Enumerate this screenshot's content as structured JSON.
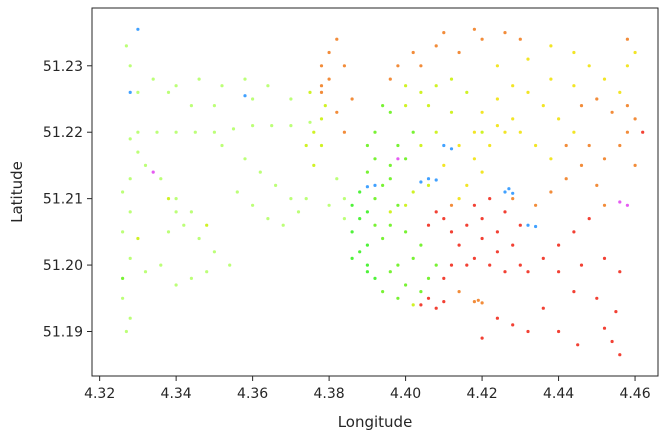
{
  "chart_data": {
    "type": "scatter",
    "title": "",
    "xlabel": "Longitude",
    "ylabel": "Latitude",
    "xlim": [
      4.318,
      4.466
    ],
    "ylim": [
      51.1833,
      51.2387
    ],
    "xticks": [
      4.32,
      4.34,
      4.36,
      4.38,
      4.4,
      4.42,
      4.44,
      4.46
    ],
    "xtick_labels": [
      "4.32",
      "4.34",
      "4.36",
      "4.38",
      "4.40",
      "4.42",
      "4.44",
      "4.46"
    ],
    "yticks": [
      51.19,
      51.2,
      51.21,
      51.22,
      51.23
    ],
    "ytick_labels": [
      "51.19",
      "51.20",
      "51.21",
      "51.22",
      "51.23"
    ],
    "grid": false,
    "legend": "none",
    "colors": {
      "red": "#f02010",
      "orange": "#f07818",
      "yellow": "#f0e000",
      "lime": "#c8f000",
      "green": "#60f010",
      "bright_green": "#30f018",
      "light_green": "#b0ff60",
      "blue": "#2090ff",
      "magenta": "#e040f0"
    },
    "points": [
      [
        4.41,
        51.215,
        "yellow"
      ],
      [
        4.414,
        51.218,
        "yellow"
      ],
      [
        4.418,
        51.22,
        "yellow"
      ],
      [
        4.412,
        51.223,
        "lime"
      ],
      [
        4.406,
        51.224,
        "lime"
      ],
      [
        4.402,
        51.22,
        "green"
      ],
      [
        4.398,
        51.218,
        "green"
      ],
      [
        4.396,
        51.215,
        "green"
      ],
      [
        4.394,
        51.212,
        "green"
      ],
      [
        4.392,
        51.21,
        "green"
      ],
      [
        4.39,
        51.208,
        "bright_green"
      ],
      [
        4.388,
        51.207,
        "bright_green"
      ],
      [
        4.386,
        51.205,
        "bright_green"
      ],
      [
        4.388,
        51.202,
        "bright_green"
      ],
      [
        4.39,
        51.2,
        "bright_green"
      ],
      [
        4.392,
        51.198,
        "bright_green"
      ],
      [
        4.394,
        51.196,
        "green"
      ],
      [
        4.398,
        51.195,
        "green"
      ],
      [
        4.402,
        51.194,
        "lime"
      ],
      [
        4.404,
        51.196,
        "green"
      ],
      [
        4.406,
        51.198,
        "green"
      ],
      [
        4.408,
        51.2,
        "green"
      ],
      [
        4.404,
        51.203,
        "green"
      ],
      [
        4.4,
        51.205,
        "green"
      ],
      [
        4.396,
        51.206,
        "green"
      ],
      [
        4.398,
        51.209,
        "green"
      ],
      [
        4.402,
        51.211,
        "lime"
      ],
      [
        4.406,
        51.212,
        "lime"
      ],
      [
        4.416,
        51.212,
        "yellow"
      ],
      [
        4.42,
        51.214,
        "yellow"
      ],
      [
        4.414,
        51.203,
        "red"
      ],
      [
        4.418,
        51.201,
        "red"
      ],
      [
        4.422,
        51.2,
        "red"
      ],
      [
        4.426,
        51.199,
        "red"
      ],
      [
        4.43,
        51.2,
        "red"
      ],
      [
        4.428,
        51.203,
        "red"
      ],
      [
        4.424,
        51.205,
        "red"
      ],
      [
        4.42,
        51.207,
        "red"
      ],
      [
        4.416,
        51.206,
        "red"
      ],
      [
        4.412,
        51.205,
        "red"
      ],
      [
        4.42,
        51.204,
        "red"
      ],
      [
        4.424,
        51.202,
        "red"
      ],
      [
        4.416,
        51.2,
        "red"
      ],
      [
        4.412,
        51.2,
        "red"
      ],
      [
        4.41,
        51.198,
        "red"
      ],
      [
        4.404,
        51.194,
        "red"
      ],
      [
        4.408,
        51.1935,
        "red"
      ],
      [
        4.41,
        51.1945,
        "red"
      ],
      [
        4.414,
        51.196,
        "orange"
      ],
      [
        4.406,
        51.195,
        "red"
      ],
      [
        4.426,
        51.208,
        "red"
      ],
      [
        4.428,
        51.21,
        "orange"
      ],
      [
        4.422,
        51.21,
        "red"
      ],
      [
        4.418,
        51.209,
        "red"
      ],
      [
        4.43,
        51.206,
        "red"
      ],
      [
        4.434,
        51.209,
        "orange"
      ],
      [
        4.438,
        51.211,
        "orange"
      ],
      [
        4.442,
        51.213,
        "orange"
      ],
      [
        4.446,
        51.215,
        "orange"
      ],
      [
        4.45,
        51.212,
        "orange"
      ],
      [
        4.452,
        51.209,
        "orange"
      ],
      [
        4.448,
        51.207,
        "red"
      ],
      [
        4.444,
        51.205,
        "red"
      ],
      [
        4.44,
        51.203,
        "red"
      ],
      [
        4.436,
        51.201,
        "red"
      ],
      [
        4.432,
        51.199,
        "red"
      ],
      [
        4.44,
        51.199,
        "red"
      ],
      [
        4.446,
        51.2,
        "red"
      ],
      [
        4.452,
        51.201,
        "red"
      ],
      [
        4.456,
        51.199,
        "red"
      ],
      [
        4.45,
        51.195,
        "red"
      ],
      [
        4.455,
        51.193,
        "red"
      ],
      [
        4.452,
        51.1905,
        "red"
      ],
      [
        4.454,
        51.1885,
        "red"
      ],
      [
        4.456,
        51.1865,
        "red"
      ],
      [
        4.424,
        51.192,
        "red"
      ],
      [
        4.428,
        51.191,
        "red"
      ],
      [
        4.432,
        51.19,
        "red"
      ],
      [
        4.436,
        51.1935,
        "red"
      ],
      [
        4.444,
        51.196,
        "red"
      ],
      [
        4.414,
        51.232,
        "orange"
      ],
      [
        4.42,
        51.234,
        "orange"
      ],
      [
        4.426,
        51.235,
        "orange"
      ],
      [
        4.43,
        51.234,
        "orange"
      ],
      [
        4.418,
        51.2355,
        "orange"
      ],
      [
        4.41,
        51.235,
        "orange"
      ],
      [
        4.424,
        51.23,
        "yellow"
      ],
      [
        4.432,
        51.231,
        "yellow"
      ],
      [
        4.438,
        51.233,
        "yellow"
      ],
      [
        4.444,
        51.232,
        "yellow"
      ],
      [
        4.448,
        51.23,
        "yellow"
      ],
      [
        4.452,
        51.228,
        "yellow"
      ],
      [
        4.456,
        51.226,
        "yellow"
      ],
      [
        4.458,
        51.224,
        "orange"
      ],
      [
        4.46,
        51.222,
        "orange"
      ],
      [
        4.458,
        51.22,
        "orange"
      ],
      [
        4.456,
        51.218,
        "orange"
      ],
      [
        4.452,
        51.216,
        "orange"
      ],
      [
        4.448,
        51.218,
        "orange"
      ],
      [
        4.444,
        51.22,
        "yellow"
      ],
      [
        4.44,
        51.222,
        "yellow"
      ],
      [
        4.436,
        51.224,
        "yellow"
      ],
      [
        4.432,
        51.226,
        "yellow"
      ],
      [
        4.428,
        51.227,
        "yellow"
      ],
      [
        4.424,
        51.225,
        "yellow"
      ],
      [
        4.42,
        51.223,
        "yellow"
      ],
      [
        4.43,
        51.22,
        "yellow"
      ],
      [
        4.434,
        51.218,
        "yellow"
      ],
      [
        4.438,
        51.216,
        "yellow"
      ],
      [
        4.442,
        51.218,
        "orange"
      ],
      [
        4.446,
        51.224,
        "orange"
      ],
      [
        4.45,
        51.225,
        "orange"
      ],
      [
        4.454,
        51.223,
        "orange"
      ],
      [
        4.444,
        51.227,
        "yellow"
      ],
      [
        4.438,
        51.228,
        "yellow"
      ],
      [
        4.458,
        51.23,
        "yellow"
      ],
      [
        4.46,
        51.232,
        "yellow"
      ],
      [
        4.458,
        51.234,
        "orange"
      ],
      [
        4.462,
        51.22,
        "red"
      ],
      [
        4.46,
        51.215,
        "orange"
      ],
      [
        4.412,
        51.228,
        "lime"
      ],
      [
        4.416,
        51.226,
        "lime"
      ],
      [
        4.408,
        51.227,
        "lime"
      ],
      [
        4.404,
        51.226,
        "lime"
      ],
      [
        4.4,
        51.224,
        "lime"
      ],
      [
        4.404,
        51.23,
        "orange"
      ],
      [
        4.402,
        51.232,
        "orange"
      ],
      [
        4.398,
        51.23,
        "orange"
      ],
      [
        4.396,
        51.228,
        "orange"
      ],
      [
        4.408,
        51.233,
        "orange"
      ],
      [
        4.392,
        51.22,
        "green"
      ],
      [
        4.39,
        51.218,
        "green"
      ],
      [
        4.394,
        51.224,
        "green"
      ],
      [
        4.396,
        51.223,
        "green"
      ],
      [
        4.4,
        51.227,
        "lime"
      ],
      [
        4.386,
        51.225,
        "orange"
      ],
      [
        4.384,
        51.22,
        "orange"
      ],
      [
        4.382,
        51.223,
        "orange"
      ],
      [
        4.38,
        51.228,
        "orange"
      ],
      [
        4.378,
        51.226,
        "orange"
      ],
      [
        4.378,
        51.222,
        "lime"
      ],
      [
        4.379,
        51.224,
        "lime"
      ],
      [
        4.378,
        51.227,
        "orange"
      ],
      [
        4.378,
        51.23,
        "orange"
      ],
      [
        4.38,
        51.232,
        "orange"
      ],
      [
        4.384,
        51.23,
        "orange"
      ],
      [
        4.382,
        51.234,
        "orange"
      ],
      [
        4.375,
        51.226,
        "lime"
      ],
      [
        4.376,
        51.22,
        "lime"
      ],
      [
        4.374,
        51.218,
        "lime"
      ],
      [
        4.33,
        51.22,
        "light_green"
      ],
      [
        4.335,
        51.22,
        "light_green"
      ],
      [
        4.34,
        51.22,
        "light_green"
      ],
      [
        4.345,
        51.22,
        "light_green"
      ],
      [
        4.35,
        51.22,
        "light_green"
      ],
      [
        4.355,
        51.2205,
        "light_green"
      ],
      [
        4.36,
        51.221,
        "light_green"
      ],
      [
        4.365,
        51.221,
        "light_green"
      ],
      [
        4.37,
        51.221,
        "light_green"
      ],
      [
        4.375,
        51.2215,
        "light_green"
      ],
      [
        4.328,
        51.219,
        "light_green"
      ],
      [
        4.33,
        51.217,
        "light_green"
      ],
      [
        4.332,
        51.215,
        "light_green"
      ],
      [
        4.336,
        51.213,
        "light_green"
      ],
      [
        4.34,
        51.21,
        "light_green"
      ],
      [
        4.344,
        51.208,
        "light_green"
      ],
      [
        4.34,
        51.208,
        "light_green"
      ],
      [
        4.342,
        51.206,
        "light_green"
      ],
      [
        4.338,
        51.205,
        "light_green"
      ],
      [
        4.346,
        51.204,
        "light_green"
      ],
      [
        4.35,
        51.202,
        "light_green"
      ],
      [
        4.354,
        51.2,
        "light_green"
      ],
      [
        4.348,
        51.199,
        "light_green"
      ],
      [
        4.344,
        51.198,
        "light_green"
      ],
      [
        4.34,
        51.197,
        "light_green"
      ],
      [
        4.336,
        51.2,
        "light_green"
      ],
      [
        4.332,
        51.199,
        "light_green"
      ],
      [
        4.328,
        51.201,
        "light_green"
      ],
      [
        4.326,
        51.205,
        "light_green"
      ],
      [
        4.328,
        51.208,
        "light_green"
      ],
      [
        4.326,
        51.211,
        "light_green"
      ],
      [
        4.328,
        51.213,
        "light_green"
      ],
      [
        4.33,
        51.226,
        "light_green"
      ],
      [
        4.328,
        51.23,
        "light_green"
      ],
      [
        4.327,
        51.233,
        "light_green"
      ],
      [
        4.326,
        51.195,
        "light_green"
      ],
      [
        4.328,
        51.192,
        "light_green"
      ],
      [
        4.327,
        51.19,
        "light_green"
      ],
      [
        4.326,
        51.198,
        "green"
      ],
      [
        4.33,
        51.204,
        "lime"
      ],
      [
        4.338,
        51.21,
        "lime"
      ],
      [
        4.348,
        51.206,
        "lime"
      ],
      [
        4.352,
        51.218,
        "light_green"
      ],
      [
        4.358,
        51.216,
        "light_green"
      ],
      [
        4.362,
        51.214,
        "light_green"
      ],
      [
        4.366,
        51.212,
        "light_green"
      ],
      [
        4.37,
        51.21,
        "light_green"
      ],
      [
        4.372,
        51.208,
        "light_green"
      ],
      [
        4.368,
        51.206,
        "light_green"
      ],
      [
        4.364,
        51.207,
        "light_green"
      ],
      [
        4.36,
        51.209,
        "light_green"
      ],
      [
        4.356,
        51.211,
        "light_green"
      ],
      [
        4.374,
        51.21,
        "light_green"
      ],
      [
        4.376,
        51.215,
        "lime"
      ],
      [
        4.378,
        51.218,
        "lime"
      ],
      [
        4.382,
        51.213,
        "light_green"
      ],
      [
        4.384,
        51.21,
        "light_green"
      ],
      [
        4.38,
        51.209,
        "light_green"
      ],
      [
        4.384,
        51.207,
        "light_green"
      ],
      [
        4.37,
        51.225,
        "light_green"
      ],
      [
        4.364,
        51.227,
        "light_green"
      ],
      [
        4.358,
        51.228,
        "light_green"
      ],
      [
        4.352,
        51.227,
        "light_green"
      ],
      [
        4.346,
        51.228,
        "light_green"
      ],
      [
        4.34,
        51.227,
        "light_green"
      ],
      [
        4.334,
        51.228,
        "light_green"
      ],
      [
        4.338,
        51.226,
        "light_green"
      ],
      [
        4.36,
        51.225,
        "light_green"
      ],
      [
        4.344,
        51.224,
        "light_green"
      ],
      [
        4.35,
        51.224,
        "light_green"
      ],
      [
        4.404,
        51.2125,
        "blue"
      ],
      [
        4.408,
        51.2128,
        "blue"
      ],
      [
        4.406,
        51.213,
        "blue"
      ],
      [
        4.392,
        51.212,
        "blue"
      ],
      [
        4.39,
        51.2118,
        "blue"
      ],
      [
        4.426,
        51.211,
        "blue"
      ],
      [
        4.428,
        51.2108,
        "blue"
      ],
      [
        4.427,
        51.2115,
        "blue"
      ],
      [
        4.432,
        51.206,
        "blue"
      ],
      [
        4.434,
        51.2058,
        "blue"
      ],
      [
        4.412,
        51.2175,
        "blue"
      ],
      [
        4.41,
        51.218,
        "blue"
      ],
      [
        4.33,
        51.2355,
        "blue"
      ],
      [
        4.328,
        51.226,
        "blue"
      ],
      [
        4.334,
        51.214,
        "magenta"
      ],
      [
        4.358,
        51.2255,
        "blue"
      ],
      [
        4.456,
        51.2095,
        "magenta"
      ],
      [
        4.458,
        51.209,
        "magenta"
      ],
      [
        4.398,
        51.216,
        "magenta"
      ],
      [
        4.418,
        51.1945,
        "orange"
      ],
      [
        4.42,
        51.1943,
        "orange"
      ],
      [
        4.419,
        51.1947,
        "orange"
      ],
      [
        4.44,
        51.19,
        "red"
      ],
      [
        4.445,
        51.188,
        "red"
      ],
      [
        4.42,
        51.189,
        "red"
      ],
      [
        4.398,
        51.2,
        "green"
      ],
      [
        4.396,
        51.199,
        "green"
      ],
      [
        4.4,
        51.197,
        "green"
      ],
      [
        4.402,
        51.201,
        "green"
      ],
      [
        4.394,
        51.204,
        "green"
      ],
      [
        4.392,
        51.206,
        "green"
      ],
      [
        4.396,
        51.208,
        "lime"
      ],
      [
        4.4,
        51.209,
        "lime"
      ],
      [
        4.408,
        51.208,
        "red"
      ],
      [
        4.406,
        51.206,
        "red"
      ],
      [
        4.41,
        51.207,
        "red"
      ],
      [
        4.412,
        51.209,
        "orange"
      ],
      [
        4.414,
        51.21,
        "yellow"
      ],
      [
        4.418,
        51.216,
        "yellow"
      ],
      [
        4.422,
        51.218,
        "yellow"
      ],
      [
        4.426,
        51.22,
        "yellow"
      ],
      [
        4.428,
        51.222,
        "yellow"
      ],
      [
        4.424,
        51.221,
        "yellow"
      ],
      [
        4.42,
        51.22,
        "lime"
      ],
      [
        4.408,
        51.22,
        "lime"
      ],
      [
        4.404,
        51.218,
        "lime"
      ],
      [
        4.4,
        51.216,
        "green"
      ],
      [
        4.396,
        51.213,
        "green"
      ],
      [
        4.392,
        51.216,
        "green"
      ],
      [
        4.39,
        51.214,
        "green"
      ],
      [
        4.388,
        51.211,
        "bright_green"
      ],
      [
        4.386,
        51.209,
        "bright_green"
      ],
      [
        4.39,
        51.203,
        "bright_green"
      ],
      [
        4.386,
        51.201,
        "bright_green"
      ],
      [
        4.39,
        51.199,
        "bright_green"
      ]
    ]
  }
}
